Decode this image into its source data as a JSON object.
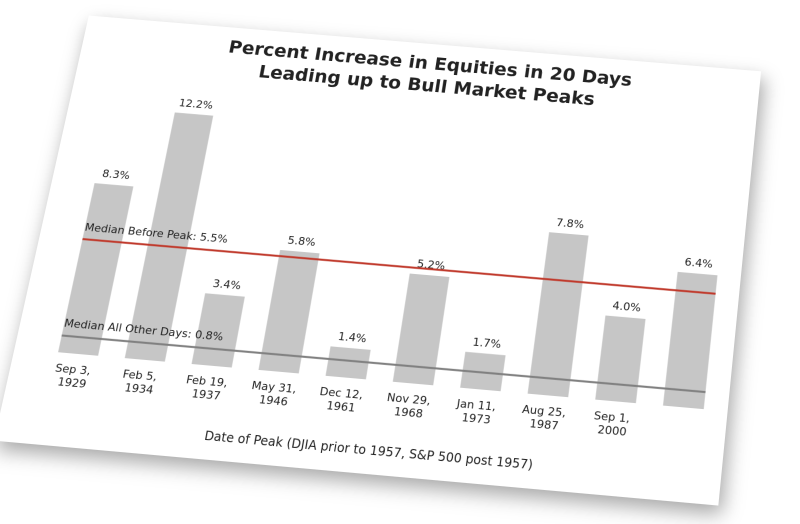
{
  "chart_data": {
    "type": "bar",
    "title": [
      "Percent Increase in Equities in 20 Days",
      "Leading up to Bull Market Peaks"
    ],
    "x_label": "Date of Peak (DJIA prior to 1957, S&P 500 post 1957)",
    "categories": [
      "Sep 3, 1929",
      "Feb 5, 1934",
      "Feb 19, 1937",
      "May 31, 1946",
      "Dec 12, 1961",
      "Nov 29, 1968",
      "Jan 11, 1973",
      "Aug 25, 1987",
      "Sep 1, 2000",
      null
    ],
    "values": [
      8.3,
      12.2,
      3.4,
      5.8,
      1.4,
      5.2,
      1.7,
      7.8,
      4.0,
      6.4
    ],
    "value_labels": [
      "8.3%",
      "12.2%",
      "3.4%",
      "5.8%",
      "1.4%",
      "5.2%",
      "1.7%",
      "7.8%",
      "4.0%",
      "6.4%"
    ],
    "color": "#c6c6c6",
    "ylim": [
      0,
      13
    ],
    "reference_lines": [
      {
        "label": "Median Before Peak: 5.5%",
        "value": 5.5,
        "color": "#c0392b"
      },
      {
        "label": "Median All Other Days: 0.8%",
        "value": 0.8,
        "color": "#808080"
      }
    ]
  }
}
